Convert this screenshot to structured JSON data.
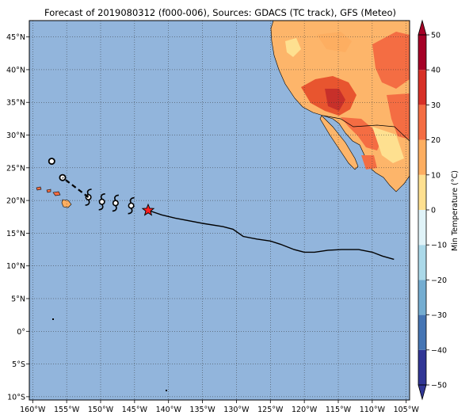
{
  "title": "Forecast of 2019080312 (f000-006), Sources: GDACS (TC track), GFS (Meteo)",
  "map": {
    "lon_ticks": [
      "160°W",
      "155°W",
      "150°W",
      "145°W",
      "140°W",
      "135°W",
      "130°W",
      "125°W",
      "120°W",
      "115°W",
      "110°W",
      "105°W"
    ],
    "lon_values": [
      -160,
      -155,
      -150,
      -145,
      -140,
      -135,
      -130,
      -125,
      -120,
      -115,
      -110,
      -105
    ],
    "lat_ticks": [
      "45°N",
      "40°N",
      "35°N",
      "30°N",
      "25°N",
      "20°N",
      "15°N",
      "10°N",
      "5°N",
      "0°",
      "5°S",
      "10°S"
    ],
    "lat_values": [
      45,
      40,
      35,
      30,
      25,
      20,
      15,
      10,
      5,
      0,
      -5,
      -10
    ],
    "extent": {
      "lon_min": -160.5,
      "lon_max": -104.5,
      "lat_min": -10.5,
      "lat_max": 47.5
    },
    "ocean_color": "#92b5dc",
    "grid": true
  },
  "colorbar": {
    "label": "Min Temperature (°C)",
    "ticks": [
      "50",
      "40",
      "30",
      "20",
      "10",
      "0",
      "−10",
      "−20",
      "−30",
      "−40",
      "−50"
    ],
    "tick_values": [
      50,
      40,
      30,
      20,
      10,
      0,
      -10,
      -20,
      -30,
      -40,
      -50
    ],
    "colors": [
      "#313695",
      "#4575b4",
      "#74add1",
      "#abd9e9",
      "#e0f3f8",
      "#fee090",
      "#fdae61",
      "#f46d43",
      "#d73027",
      "#a50026"
    ],
    "extend": "both"
  },
  "track": {
    "color": "#000000",
    "points": [
      [
        -106.8,
        11.0
      ],
      [
        -108.5,
        11.5
      ],
      [
        -110.0,
        12.1
      ],
      [
        -112.0,
        12.5
      ],
      [
        -114.5,
        12.5
      ],
      [
        -116.5,
        12.4
      ],
      [
        -118.5,
        12.1
      ],
      [
        -120.0,
        12.1
      ],
      [
        -121.5,
        12.5
      ],
      [
        -123.5,
        13.3
      ],
      [
        -125.0,
        13.8
      ],
      [
        -127.0,
        14.1
      ],
      [
        -129.0,
        14.5
      ],
      [
        -130.5,
        15.6
      ],
      [
        -132.0,
        16.0
      ],
      [
        -135.0,
        16.5
      ],
      [
        -139.0,
        17.3
      ],
      [
        -141.0,
        17.8
      ],
      [
        -143.0,
        18.5
      ]
    ],
    "current_position": {
      "lon": -143.0,
      "lat": 18.5,
      "marker": "star-icon",
      "color": "#ff2020"
    },
    "forecast_points": [
      {
        "lon": -145.5,
        "lat": 19.2,
        "marker": "tropical-storm-symbol"
      },
      {
        "lon": -147.8,
        "lat": 19.6,
        "marker": "tropical-storm-symbol"
      },
      {
        "lon": -149.8,
        "lat": 19.8,
        "marker": "tropical-storm-symbol"
      },
      {
        "lon": -151.8,
        "lat": 20.5,
        "marker": "tropical-storm-symbol"
      },
      {
        "lon": -155.6,
        "lat": 23.5,
        "marker": "depression-symbol"
      },
      {
        "lon": -157.2,
        "lat": 26.0,
        "marker": "depression-symbol"
      }
    ]
  }
}
